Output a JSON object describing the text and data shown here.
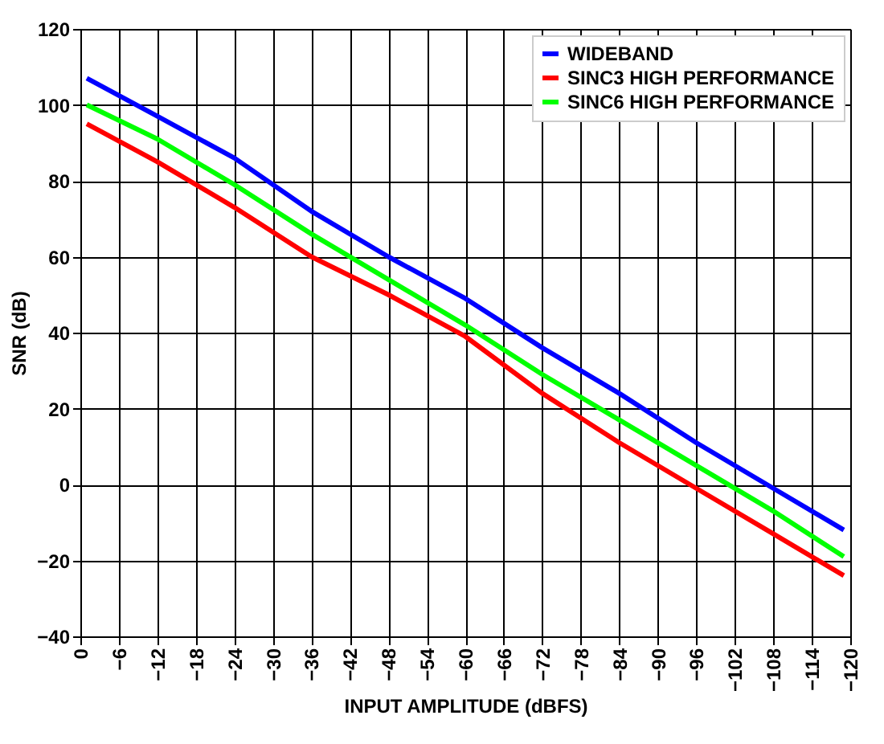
{
  "chart_data": {
    "type": "line",
    "xlabel": "INPUT AMPLITUDE (dBFS)",
    "ylabel": "SNR (dB)",
    "x": [
      -1,
      -12,
      -24,
      -36,
      -48,
      -60,
      -72,
      -84,
      -96,
      -108,
      -119
    ],
    "series": [
      {
        "name": "WIDEBAND",
        "color": "#0000ff",
        "values": [
          107,
          97,
          86,
          72,
          60,
          49,
          36,
          24,
          11,
          -1,
          -12
        ]
      },
      {
        "name": "SINC3 HIGH PERFORMANCE",
        "color": "#ff0000",
        "values": [
          95,
          85,
          73,
          60,
          50,
          39,
          24,
          11,
          -1,
          -13,
          -24
        ]
      },
      {
        "name": "SINC6 HIGH PERFORMANCE",
        "color": "#00ff00",
        "values": [
          100,
          91,
          79,
          66,
          54,
          42,
          29,
          17,
          5,
          -7,
          -19
        ]
      }
    ],
    "xlim": [
      0,
      -120
    ],
    "xticks": [
      0,
      {
        "value": -6,
        "label": "−6"
      },
      {
        "value": -12,
        "label": "−12"
      },
      {
        "value": -18,
        "label": "−18"
      },
      {
        "value": -24,
        "label": "−24"
      },
      {
        "value": -30,
        "label": "−30"
      },
      {
        "value": -36,
        "label": "−36"
      },
      {
        "value": -42,
        "label": "−42"
      },
      {
        "value": -48,
        "label": "−48"
      },
      {
        "value": -54,
        "label": "−54"
      },
      {
        "value": -60,
        "label": "−60"
      },
      {
        "value": -66,
        "label": "−66"
      },
      {
        "value": -72,
        "label": "−72"
      },
      {
        "value": -78,
        "label": "−78"
      },
      {
        "value": -84,
        "label": "−84"
      },
      {
        "value": -90,
        "label": "−90"
      },
      {
        "value": -96,
        "label": "−96"
      },
      {
        "value": -102,
        "label": "−102"
      },
      {
        "value": -108,
        "label": "−108"
      },
      {
        "value": -114,
        "label": "−114"
      },
      {
        "value": -120,
        "label": "−120"
      }
    ],
    "ylim": [
      -40,
      120
    ],
    "yticks": [
      {
        "value": -40,
        "label": "−40"
      },
      {
        "value": -20,
        "label": "−20"
      },
      0,
      20,
      40,
      60,
      80,
      100,
      120
    ],
    "grid": true,
    "legend": "top right",
    "marker": "none",
    "line_style": "solid"
  }
}
